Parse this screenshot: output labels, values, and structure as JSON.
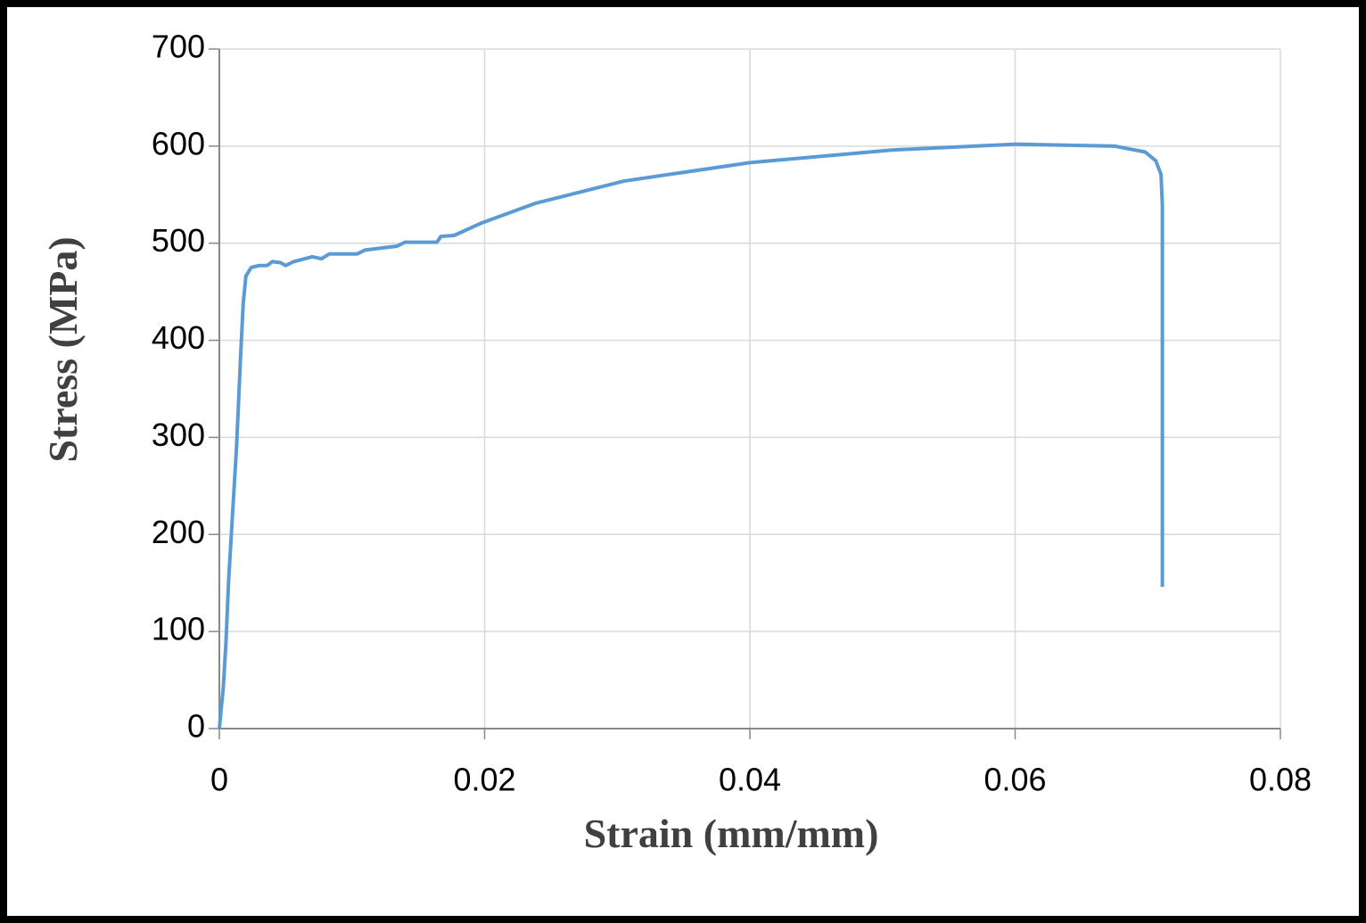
{
  "chart_data": {
    "type": "line",
    "x_label": "Strain (mm/mm)",
    "y_label": "Stress (MPa)",
    "xlim": [
      0,
      0.08
    ],
    "xticks": [
      0,
      0.02,
      0.04,
      0.06,
      0.08
    ],
    "ylim": [
      0,
      700
    ],
    "yticks": [
      0,
      100,
      200,
      300,
      400,
      500,
      600,
      700
    ],
    "grid": true,
    "series": [
      {
        "color": "#5b9bd5",
        "x": [
          0,
          0.0003,
          0.0005,
          0.0007,
          0.0009,
          0.0013,
          0.0016,
          0.0018,
          0.002,
          0.0024,
          0.003,
          0.0036,
          0.004,
          0.0046,
          0.005,
          0.0056,
          0.007,
          0.0077,
          0.0083,
          0.0104,
          0.011,
          0.0134,
          0.014,
          0.0164,
          0.0167,
          0.0177,
          0.0198,
          0.0238,
          0.0305,
          0.04,
          0.0507,
          0.0601,
          0.0675,
          0.0698,
          0.0706,
          0.071,
          0.0711,
          0.0711,
          0.0711
        ],
        "values": [
          0,
          43,
          89,
          153,
          199,
          291,
          383,
          438,
          466,
          475,
          477,
          477,
          481,
          480,
          477,
          481,
          486,
          484,
          489,
          489,
          493,
          497,
          501,
          501,
          507,
          508,
          521,
          541,
          564,
          583,
          596,
          602,
          600,
          594,
          585,
          571,
          539,
          383,
          146
        ]
      }
    ]
  }
}
